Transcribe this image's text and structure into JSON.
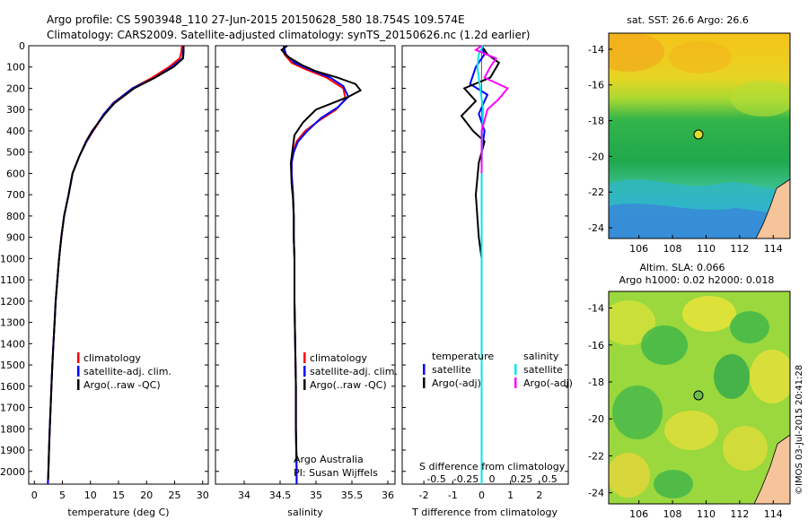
{
  "header": {
    "line1": "Argo profile: CS 5903948_110 27-Jun-2015 20150628_580 18.754S 109.574E",
    "line2": "Climatology: CARS2009. Satellite-adjusted climatology: synTS_20150626.nc (1.2d earlier)"
  },
  "colors": {
    "climatology": "#ff0000",
    "satellite": "#0000ff",
    "argo": "#000000",
    "satellite_s": "#00e5ee",
    "argo_s": "#ff00ff"
  },
  "depth_axis": {
    "ticks": [
      "0",
      "100",
      "200",
      "300",
      "400",
      "500",
      "600",
      "700",
      "800",
      "900",
      "1000",
      "1100",
      "1200",
      "1300",
      "1400",
      "1500",
      "1600",
      "1700",
      "1800",
      "1900",
      "2000"
    ]
  },
  "legend": {
    "climatology": "climatology",
    "satellite": "satellite-adj. clim.",
    "argo": "Argo(..raw -QC)"
  },
  "diff_legend": {
    "temperature": "temperature",
    "salinity": "salinity",
    "satellite": "satellite",
    "argo": "Argo(-adj)"
  },
  "credits": {
    "org": "Argo Australia",
    "pi": "PI: Susan Wijffels"
  },
  "diff_top_label": "S difference from climatology",
  "diff_top_ticks": [
    "-0.5",
    "-0.25",
    "0",
    "0.25",
    "0.5"
  ],
  "sst_map": {
    "title": "sat. SST: 26.6 Argo: 26.6",
    "lat_ticks": [
      "-14",
      "-16",
      "-18",
      "-20",
      "-22",
      "-24"
    ],
    "lon_ticks": [
      "106",
      "108",
      "110",
      "112",
      "114"
    ]
  },
  "sla_map": {
    "title1": "Altim. SLA: 0.066",
    "title2": "Argo h1000: 0.02 h2000: 0.018",
    "lat_ticks": [
      "-14",
      "-16",
      "-18",
      "-20",
      "-22",
      "-24"
    ],
    "lon_ticks": [
      "106",
      "108",
      "110",
      "112",
      "114"
    ]
  },
  "stamp": "©IMOS 03-Jul-2015 20:41:28",
  "chart_data": [
    {
      "type": "line",
      "title": "",
      "xlabel": "temperature (deg C)",
      "ylabel": "",
      "xlim": [
        -1,
        31
      ],
      "ylim": [
        2060,
        0
      ],
      "x_ticks": [
        "0",
        "5",
        "10",
        "15",
        "20",
        "25",
        "30"
      ],
      "series": [
        {
          "name": "climatology",
          "color": "#ff0000",
          "points": [
            [
              26.3,
              0
            ],
            [
              26.2,
              30
            ],
            [
              25.9,
              60
            ],
            [
              24,
              100
            ],
            [
              21,
              150
            ],
            [
              17.5,
              200
            ],
            [
              14,
              270
            ],
            [
              12.5,
              320
            ],
            [
              10.5,
              400
            ],
            [
              9.3,
              450
            ],
            [
              8,
              520
            ],
            [
              6.8,
              600
            ],
            [
              6.1,
              700
            ],
            [
              5.3,
              800
            ],
            [
              4.8,
              900
            ],
            [
              4.4,
              1000
            ],
            [
              4.1,
              1100
            ],
            [
              3.8,
              1200
            ],
            [
              3.6,
              1300
            ],
            [
              3.4,
              1400
            ],
            [
              3.2,
              1500
            ],
            [
              3.05,
              1600
            ],
            [
              2.9,
              1700
            ],
            [
              2.75,
              1800
            ],
            [
              2.62,
              1900
            ],
            [
              2.5,
              2000
            ],
            [
              2.4,
              2060
            ]
          ]
        },
        {
          "name": "satellite-adj. clim.",
          "color": "#0000ff",
          "points": [
            [
              26.6,
              0
            ],
            [
              26.5,
              30
            ],
            [
              26.4,
              60
            ],
            [
              24.5,
              100
            ],
            [
              21.5,
              150
            ],
            [
              17.5,
              200
            ],
            [
              14.1,
              270
            ],
            [
              12.4,
              320
            ],
            [
              10.4,
              400
            ],
            [
              9.3,
              450
            ],
            [
              8,
              520
            ],
            [
              6.8,
              600
            ],
            [
              6.1,
              700
            ],
            [
              5.3,
              800
            ],
            [
              4.8,
              900
            ],
            [
              4.4,
              1000
            ],
            [
              4.1,
              1100
            ],
            [
              3.8,
              1200
            ],
            [
              3.6,
              1300
            ],
            [
              3.4,
              1400
            ],
            [
              3.2,
              1500
            ],
            [
              3.05,
              1600
            ],
            [
              2.9,
              1700
            ],
            [
              2.75,
              1800
            ],
            [
              2.62,
              1900
            ],
            [
              2.5,
              2000
            ],
            [
              2.4,
              2060
            ]
          ]
        },
        {
          "name": "Argo(..raw -QC)",
          "color": "#000000",
          "points": [
            [
              26.6,
              0
            ],
            [
              26.6,
              30
            ],
            [
              26.5,
              60
            ],
            [
              24.8,
              100
            ],
            [
              21.5,
              150
            ],
            [
              17.8,
              200
            ],
            [
              14.3,
              270
            ],
            [
              12.6,
              320
            ],
            [
              10.3,
              400
            ],
            [
              9.2,
              450
            ],
            [
              8,
              520
            ],
            [
              6.8,
              600
            ],
            [
              6.1,
              700
            ],
            [
              5.3,
              800
            ],
            [
              4.8,
              900
            ],
            [
              4.4,
              1000
            ],
            [
              4.1,
              1100
            ],
            [
              3.8,
              1200
            ],
            [
              3.6,
              1300
            ],
            [
              3.4,
              1400
            ],
            [
              3.2,
              1500
            ],
            [
              3.05,
              1600
            ],
            [
              2.9,
              1700
            ],
            [
              2.75,
              1800
            ],
            [
              2.62,
              1900
            ],
            [
              2.5,
              2000
            ],
            [
              2.45,
              2040
            ]
          ]
        }
      ]
    },
    {
      "type": "line",
      "title": "",
      "xlabel": "salinity",
      "ylabel": "",
      "xlim": [
        33.6,
        36.1
      ],
      "ylim": [
        2060,
        0
      ],
      "x_ticks": [
        "34",
        "34.5",
        "35",
        "35.5",
        "36"
      ],
      "series": [
        {
          "name": "climatology",
          "color": "#ff0000",
          "points": [
            [
              34.55,
              0
            ],
            [
              34.56,
              40
            ],
            [
              34.66,
              80
            ],
            [
              34.85,
              110
            ],
            [
              35.15,
              150
            ],
            [
              35.38,
              200
            ],
            [
              35.41,
              250
            ],
            [
              35.28,
              300
            ],
            [
              35.05,
              350
            ],
            [
              34.85,
              400
            ],
            [
              34.73,
              450
            ],
            [
              34.68,
              500
            ],
            [
              34.66,
              550
            ],
            [
              34.66,
              600
            ],
            [
              34.68,
              700
            ],
            [
              34.69,
              800
            ],
            [
              34.69,
              900
            ],
            [
              34.7,
              1000
            ],
            [
              34.7,
              1200
            ],
            [
              34.71,
              1400
            ],
            [
              34.72,
              1600
            ],
            [
              34.72,
              1800
            ],
            [
              34.73,
              2000
            ],
            [
              34.73,
              2060
            ]
          ]
        },
        {
          "name": "satellite-adj. clim.",
          "color": "#0000ff",
          "points": [
            [
              34.55,
              0
            ],
            [
              34.58,
              40
            ],
            [
              34.7,
              80
            ],
            [
              34.9,
              110
            ],
            [
              35.2,
              150
            ],
            [
              35.38,
              190
            ],
            [
              35.45,
              240
            ],
            [
              35.3,
              290
            ],
            [
              35.07,
              340
            ],
            [
              34.88,
              400
            ],
            [
              34.75,
              450
            ],
            [
              34.69,
              500
            ],
            [
              34.66,
              550
            ],
            [
              34.66,
              600
            ],
            [
              34.68,
              700
            ],
            [
              34.69,
              800
            ],
            [
              34.69,
              900
            ],
            [
              34.7,
              1000
            ],
            [
              34.7,
              1200
            ],
            [
              34.71,
              1400
            ],
            [
              34.72,
              1600
            ],
            [
              34.72,
              1800
            ],
            [
              34.73,
              2000
            ],
            [
              34.73,
              2060
            ]
          ]
        },
        {
          "name": "Argo(..raw -QC)",
          "color": "#000000",
          "points": [
            [
              34.6,
              0
            ],
            [
              34.52,
              20
            ],
            [
              34.6,
              50
            ],
            [
              34.8,
              90
            ],
            [
              35.0,
              120
            ],
            [
              35.3,
              150
            ],
            [
              35.55,
              180
            ],
            [
              35.62,
              210
            ],
            [
              35.45,
              240
            ],
            [
              35.0,
              300
            ],
            [
              34.82,
              360
            ],
            [
              34.7,
              420
            ],
            [
              34.68,
              470
            ],
            [
              34.65,
              550
            ],
            [
              34.66,
              650
            ],
            [
              34.68,
              720
            ],
            [
              34.69,
              800
            ],
            [
              34.69,
              900
            ],
            [
              34.7,
              1000
            ],
            [
              34.7,
              1200
            ],
            [
              34.71,
              1400
            ],
            [
              34.72,
              1600
            ],
            [
              34.72,
              1800
            ],
            [
              34.73,
              1950
            ]
          ]
        }
      ]
    },
    {
      "type": "line",
      "title": "",
      "xlabel": "T difference from climatology",
      "ylabel": "",
      "xlim": [
        -2.75,
        3
      ],
      "ylim": [
        2060,
        0
      ],
      "x_ticks": [
        "-2",
        "-1",
        "0",
        "1",
        "2"
      ],
      "series": [
        {
          "name": "T satellite",
          "color": "#0000ff",
          "points": [
            [
              0,
              0
            ],
            [
              0.1,
              40
            ],
            [
              -0.2,
              100
            ],
            [
              -0.4,
              180
            ],
            [
              0.2,
              230
            ],
            [
              -0.1,
              320
            ],
            [
              0.1,
              400
            ],
            [
              0,
              500
            ],
            [
              0,
              700
            ],
            [
              0,
              1000
            ],
            [
              0,
              1500
            ],
            [
              0,
              2060
            ]
          ]
        },
        {
          "name": "T Argo(-adj)",
          "color": "#000000",
          "points": [
            [
              0,
              0
            ],
            [
              0.2,
              40
            ],
            [
              0.6,
              80
            ],
            [
              0.3,
              150
            ],
            [
              -0.6,
              200
            ],
            [
              -0.2,
              260
            ],
            [
              -0.7,
              330
            ],
            [
              -0.3,
              400
            ],
            [
              0.1,
              450
            ],
            [
              -0.1,
              550
            ],
            [
              -0.2,
              700
            ],
            [
              -0.1,
              900
            ],
            [
              0,
              1000
            ],
            [
              0,
              1500
            ],
            [
              0,
              2060
            ]
          ]
        },
        {
          "name": "S satellite",
          "color": "#00e5ee",
          "points": [
            [
              0.05,
              0
            ],
            [
              -0.1,
              40
            ],
            [
              -0.15,
              100
            ],
            [
              -0.05,
              200
            ],
            [
              0.05,
              300
            ],
            [
              0.02,
              400
            ],
            [
              0,
              600
            ],
            [
              0,
              1000
            ],
            [
              0,
              1500
            ],
            [
              0,
              2060
            ]
          ]
        },
        {
          "name": "S Argo(-adj)",
          "color": "#ff00ff",
          "points": [
            [
              0,
              0
            ],
            [
              -0.2,
              20
            ],
            [
              0.5,
              60
            ],
            [
              0.3,
              100
            ],
            [
              0.1,
              150
            ],
            [
              0.9,
              200
            ],
            [
              0.6,
              250
            ],
            [
              0.2,
              300
            ],
            [
              0,
              400
            ],
            [
              0,
              600
            ]
          ]
        }
      ]
    }
  ]
}
